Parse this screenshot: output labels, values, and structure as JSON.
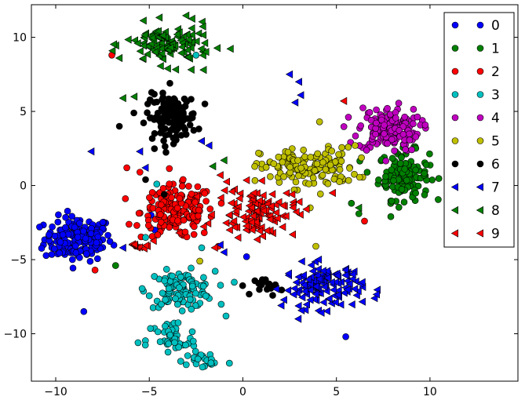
{
  "chart_data": {
    "type": "scatter",
    "title": "",
    "xlabel": "",
    "ylabel": "",
    "xlim": [
      -11.3,
      14.7
    ],
    "ylim": [
      -13.2,
      12.2
    ],
    "xticks": [
      -10,
      -5,
      0,
      5,
      10
    ],
    "yticks": [
      -10,
      -5,
      0,
      5,
      10
    ],
    "grid": false,
    "legend_position": "top-right",
    "series": [
      {
        "name": "0",
        "color": "#0000ff",
        "marker": "circle",
        "clusters": [
          {
            "center": [
              -8.8,
              -3.6
            ],
            "spread": [
              1.2,
              1.0
            ],
            "count": 170
          }
        ],
        "points": [
          [
            -8.5,
            -8.5
          ],
          [
            5.5,
            -10.2
          ],
          [
            -4.7,
            -3.0
          ],
          [
            0.2,
            -4.8
          ],
          [
            -4.9,
            -2.0
          ]
        ]
      },
      {
        "name": "1",
        "color": "#008000",
        "marker": "circle",
        "clusters": [
          {
            "center": [
              8.6,
              0.7
            ],
            "spread": [
              0.9,
              1.1
            ],
            "count": 130
          }
        ],
        "points": [
          [
            -6.8,
            -5.4
          ],
          [
            6.2,
            -1.9
          ],
          [
            5.8,
            -1.2
          ]
        ]
      },
      {
        "name": "2",
        "color": "#ff0000",
        "marker": "circle",
        "clusters": [
          {
            "center": [
              -3.5,
              -1.8
            ],
            "spread": [
              1.3,
              1.2
            ],
            "count": 170
          }
        ],
        "points": [
          [
            -7.9,
            -5.7
          ],
          [
            -7.0,
            8.8
          ],
          [
            -5.5,
            0.9
          ],
          [
            6.5,
            -2.4
          ],
          [
            -6.2,
            1.2
          ]
        ]
      },
      {
        "name": "3",
        "color": "#00bfbf",
        "marker": "circle",
        "clusters": [
          {
            "center": [
              -3.3,
              -7.0
            ],
            "spread": [
              1.2,
              0.8
            ],
            "count": 110
          },
          {
            "center": [
              -3.8,
              -10.5
            ],
            "spread": [
              0.9,
              1.0
            ],
            "count": 45
          },
          {
            "center": [
              -2.0,
              -11.8
            ],
            "spread": [
              0.8,
              0.4
            ],
            "count": 20
          }
        ],
        "points": [
          [
            -5.6,
            -10.6
          ],
          [
            -5.2,
            -3.5
          ],
          [
            -4.6,
            0.1
          ],
          [
            -2.5,
            8.8
          ],
          [
            -2.2,
            -4.2
          ],
          [
            -0.9,
            -8.8
          ]
        ]
      },
      {
        "name": "4",
        "color": "#bf00bf",
        "marker": "circle",
        "clusters": [
          {
            "center": [
              7.8,
              3.8
            ],
            "spread": [
              1.1,
              1.0
            ],
            "count": 150
          }
        ],
        "points": []
      },
      {
        "name": "5",
        "color": "#bfbf00",
        "marker": "circle",
        "clusters": [
          {
            "center": [
              3.5,
              1.2
            ],
            "spread": [
              1.7,
              0.9
            ],
            "count": 140
          }
        ],
        "points": [
          [
            4.1,
            4.3
          ],
          [
            3.6,
            -1.5
          ],
          [
            -2.3,
            -5.1
          ],
          [
            3.9,
            -4.1
          ],
          [
            6.0,
            2.7
          ]
        ]
      },
      {
        "name": "6",
        "color": "#000000",
        "marker": "circle",
        "clusters": [
          {
            "center": [
              -3.8,
              4.6
            ],
            "spread": [
              0.9,
              1.0
            ],
            "count": 130
          },
          {
            "center": [
              1.4,
              -6.8
            ],
            "spread": [
              0.5,
              0.4
            ],
            "count": 18
          }
        ],
        "points": [
          [
            -6.6,
            4.0
          ],
          [
            -5.2,
            0.4
          ],
          [
            -3.9,
            6.9
          ],
          [
            -4.2,
            -0.6
          ]
        ]
      },
      {
        "name": "7",
        "color": "#0000ff",
        "marker": "triangle-left",
        "clusters": [
          {
            "center": [
              4.3,
              -6.8
            ],
            "spread": [
              1.4,
              1.0
            ],
            "count": 130
          }
        ],
        "points": [
          [
            -8.1,
            2.3
          ],
          [
            -5.5,
            2.3
          ],
          [
            -5.2,
            1.2
          ],
          [
            -6.4,
            -4.2
          ],
          [
            2.5,
            7.5
          ],
          [
            3.0,
            7.0
          ],
          [
            3.1,
            6.1
          ],
          [
            2.8,
            5.6
          ],
          [
            -2.2,
            3.0
          ],
          [
            -1.8,
            2.7
          ],
          [
            -1.2,
            -4.0
          ],
          [
            -1.0,
            -4.5
          ]
        ]
      },
      {
        "name": "8",
        "color": "#008000",
        "marker": "triangle-left",
        "clusters": [
          {
            "center": [
              -4.0,
              9.5
            ],
            "spread": [
              1.5,
              0.9
            ],
            "count": 120
          }
        ],
        "points": [
          [
            -6.6,
            8.6
          ],
          [
            -6.4,
            5.9
          ],
          [
            -2.1,
            7.8
          ],
          [
            -1.6,
            1.3
          ],
          [
            -1.0,
            1.7
          ],
          [
            6.2,
            -1.5
          ],
          [
            -5.8,
            6.0
          ]
        ]
      },
      {
        "name": "9",
        "color": "#ff0000",
        "marker": "triangle-left",
        "clusters": [
          {
            "center": [
              0.7,
              -1.8
            ],
            "spread": [
              1.4,
              1.1
            ],
            "count": 110
          },
          {
            "center": [
              -5.4,
              -4.0
            ],
            "spread": [
              0.4,
              0.3
            ],
            "count": 10
          }
        ],
        "points": [
          [
            5.4,
            5.7
          ],
          [
            3.4,
            -1.6
          ],
          [
            -1.2,
            0.7
          ],
          [
            -3.4,
            -3.2
          ],
          [
            -1.5,
            -4.2
          ],
          [
            4.8,
            -0.5
          ]
        ]
      }
    ]
  }
}
